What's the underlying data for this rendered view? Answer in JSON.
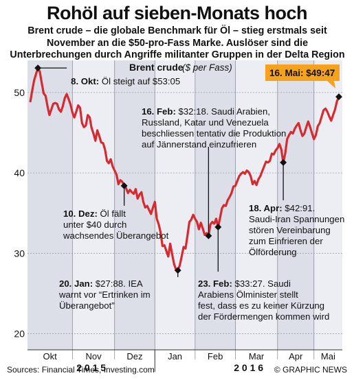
{
  "header": {
    "title": "Rohöl auf sieben-Monats hoch",
    "subtitle": "Brent crude – die globale Benchmark für Öl – stieg erstmals seit November an die $50-pro-Fass Marke. Auslöser sind die Unterbrechungen durch Angriffe militanter Gruppen in der Delta Region Nigeriens"
  },
  "footer": {
    "source": "Sources: Financial Times, Investing.com",
    "credit": "© GRAPHIC NEWS"
  },
  "colors": {
    "line": "#d62a30",
    "bg_band": "#dcdfe8",
    "alt_band": "#eceef3",
    "callout": "#f6a21d"
  },
  "chart_data": {
    "type": "line",
    "title": "Brent crude",
    "unit_label": "($ per Fass)",
    "ylim": [
      18,
      54
    ],
    "yticks": [
      20,
      30,
      40,
      50
    ],
    "months": [
      "Okt",
      "Nov",
      "Dez",
      "Jan",
      "Feb",
      "Mar",
      "Apr",
      "Mai"
    ],
    "years": [
      "2 0 1 5",
      "2 0 1 6"
    ],
    "series": [
      {
        "x": [
          0,
          1,
          2,
          3,
          4,
          5,
          6,
          7,
          8,
          9,
          10,
          11,
          12,
          13,
          14,
          15,
          16,
          17,
          18,
          19,
          20,
          21,
          22,
          23,
          24,
          25,
          26,
          27,
          28,
          29,
          30,
          31,
          32,
          33,
          34,
          35,
          36,
          37,
          38,
          39,
          40,
          41,
          42,
          43,
          44,
          45,
          46,
          47,
          48,
          49,
          50,
          51,
          52,
          53,
          54,
          55,
          56,
          57,
          58,
          59,
          60,
          61,
          62,
          63,
          64,
          65,
          66,
          67,
          68,
          69,
          70,
          71,
          72,
          73,
          74,
          75,
          76,
          77,
          78,
          79,
          80,
          81,
          82,
          83,
          84,
          85,
          86,
          87,
          88,
          89,
          90,
          91,
          92,
          93,
          94,
          95,
          96,
          97,
          98,
          99,
          100,
          101,
          102,
          103,
          104,
          105,
          106,
          107,
          108,
          109,
          110,
          111,
          112,
          113,
          114,
          115,
          116,
          117,
          118,
          119,
          120,
          121,
          122,
          123,
          124,
          125,
          126,
          127,
          128,
          129,
          130,
          131,
          132,
          133,
          134,
          135,
          136,
          137,
          138,
          139,
          140,
          141,
          142,
          143,
          144,
          145,
          146,
          147,
          148,
          149,
          150,
          151,
          152,
          153,
          154,
          155,
          156,
          157,
          158,
          159,
          160,
          161
        ],
        "values": [
          48.8,
          50.2,
          51.5,
          52.3,
          53.05,
          52.6,
          51.2,
          49.9,
          49.6,
          48.3,
          47.2,
          47.9,
          48.6,
          48.7,
          48.6,
          47.9,
          47.6,
          48.3,
          49.3,
          49.8,
          49.2,
          48.5,
          47.5,
          46.9,
          47.6,
          48.4,
          48.1,
          46.2,
          45.7,
          45.9,
          47.2,
          46.9,
          45.6,
          44.9,
          44.0,
          45.3,
          44.6,
          43.8,
          43.7,
          42.9,
          41.5,
          41.2,
          41.7,
          40.8,
          40.3,
          39.8,
          38.6,
          39.1,
          38.9,
          38.4,
          38.1,
          37.5,
          37.9,
          37.6,
          37.4,
          38.0,
          36.8,
          37.3,
          37.6,
          36.4,
          35.7,
          35.9,
          35.4,
          34.9,
          35.7,
          36.4,
          34.3,
          33.6,
          32.6,
          30.9,
          31.0,
          30.3,
          29.6,
          31.2,
          29.9,
          28.7,
          28.0,
          27.88,
          28.5,
          29.6,
          30.8,
          30.6,
          32.2,
          33.9,
          34.2,
          34.8,
          34.3,
          33.9,
          33.0,
          33.8,
          33.1,
          32.3,
          32.5,
          32.18,
          33.6,
          33.9,
          33.7,
          34.3,
          33.27,
          34.4,
          35.6,
          36.0,
          35.9,
          36.6,
          37.0,
          37.5,
          38.3,
          38.4,
          39.0,
          39.6,
          39.9,
          40.1,
          39.9,
          40.3,
          40.1,
          39.6,
          38.6,
          39.0,
          38.5,
          39.2,
          39.6,
          40.2,
          40.8,
          41.4,
          41.3,
          41.5,
          42.4,
          42.3,
          42.8,
          43.1,
          43.6,
          42.91,
          41.3,
          42.4,
          44.2,
          44.7,
          45.1,
          44.9,
          45.5,
          45.9,
          46.2,
          45.3,
          44.6,
          44.9,
          45.7,
          46.4,
          45.7,
          44.9,
          44.2,
          44.7,
          45.8,
          46.2,
          47.0,
          47.8,
          48.0,
          47.6,
          47.0,
          46.5,
          47.2,
          47.9,
          48.9,
          49.47
        ]
      }
    ],
    "month_start_index": [
      0,
      22,
      44,
      65,
      86,
      107,
      129,
      148
    ],
    "annotations": [
      {
        "date": "8. Okt:",
        "text": "Öl steigt auf $53:05",
        "index": 4
      },
      {
        "date": "10. Dez:",
        "text": "Öl fällt unter $40 durch wachsendes Überangebot",
        "index": 49
      },
      {
        "date": "20. Jan:",
        "text": "$27:88. IEA warnt vor “Ertrinken im Überangebot”",
        "index": 77
      },
      {
        "date": "16. Feb:",
        "text": "$32:18. Saudi Arabien, Russland, Katar und Venezuela beschliessen tentativ die Produktion auf Jännerstand einzufrieren",
        "index": 93
      },
      {
        "date": "23. Feb:",
        "text": "$33:27. Saudi Arabiens Ölminister stellt fest, dass es zu keiner Kürzung der Fördermengen kommen wird",
        "index": 98
      },
      {
        "date": "18. Apr:",
        "text": "$42:91. Saudi-Iran Spannungen stören Vereinbarung zum Einfrieren der Ölförderung",
        "index": 132
      },
      {
        "date": "16. Mai:",
        "text": "$49:47",
        "index": 161
      }
    ]
  }
}
